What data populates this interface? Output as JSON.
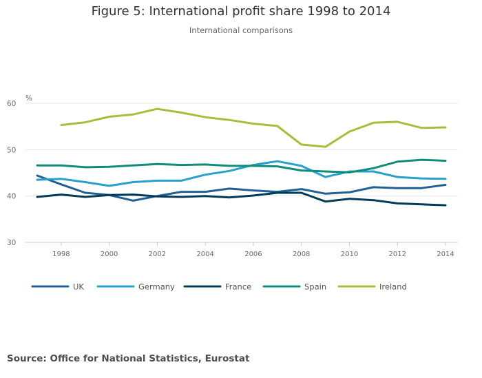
{
  "chart_data": {
    "type": "line",
    "title": "Figure 5: International profit share 1998 to 2014",
    "subtitle": "International comparisons",
    "ylabel": "%",
    "xlabel": "",
    "ylim": [
      30,
      60
    ],
    "yticks": [
      30,
      40,
      50,
      60
    ],
    "xlim": [
      1997,
      2014
    ],
    "xticks": [
      1998,
      2000,
      2002,
      2004,
      2006,
      2008,
      2010,
      2012,
      2014
    ],
    "grid": true,
    "legend_position": "bottom",
    "x": [
      1997,
      1998,
      1999,
      2000,
      2001,
      2002,
      2003,
      2004,
      2005,
      2006,
      2007,
      2008,
      2009,
      2010,
      2011,
      2012,
      2013,
      2014
    ],
    "series": [
      {
        "name": "UK",
        "color": "#206095",
        "values": [
          44.4,
          42.5,
          40.7,
          40.2,
          39.0,
          40.0,
          40.9,
          40.9,
          41.6,
          41.2,
          40.9,
          41.5,
          40.5,
          40.8,
          41.9,
          41.7,
          41.7,
          42.4
        ]
      },
      {
        "name": "Germany",
        "color": "#27a0cc",
        "values": [
          43.5,
          43.7,
          43.0,
          42.2,
          43.0,
          43.3,
          43.3,
          44.6,
          45.4,
          46.7,
          47.5,
          46.5,
          44.1,
          45.3,
          45.3,
          44.1,
          43.8,
          43.7
        ]
      },
      {
        "name": "France",
        "color": "#003c57",
        "values": [
          39.8,
          40.3,
          39.8,
          40.2,
          40.3,
          39.9,
          39.8,
          40.0,
          39.7,
          40.1,
          40.7,
          40.7,
          38.8,
          39.4,
          39.1,
          38.4,
          38.2,
          38.0
        ]
      },
      {
        "name": "Spain",
        "color": "#118c7b",
        "values": [
          46.6,
          46.6,
          46.2,
          46.3,
          46.6,
          46.9,
          46.7,
          46.8,
          46.5,
          46.5,
          46.4,
          45.5,
          45.3,
          45.1,
          46.0,
          47.4,
          47.8,
          47.6
        ]
      },
      {
        "name": "Ireland",
        "color": "#a8bd3a",
        "values": [
          null,
          55.3,
          55.9,
          57.1,
          57.6,
          58.8,
          58.0,
          57.0,
          56.4,
          55.6,
          55.1,
          51.1,
          50.6,
          53.9,
          55.8,
          56.0,
          54.7,
          54.8
        ]
      }
    ]
  },
  "source": "Source: Office for National Statistics, Eurostat"
}
